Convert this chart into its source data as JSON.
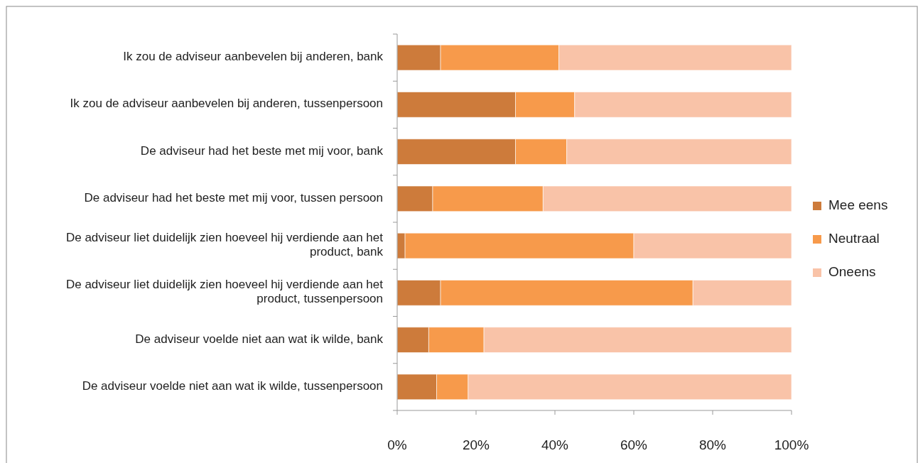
{
  "chart_data": {
    "type": "bar",
    "orientation": "horizontal",
    "stacked": true,
    "categories": [
      "Ik zou de adviseur aanbevelen bij anderen, bank",
      "Ik zou de adviseur aanbevelen bij anderen, tussenpersoon",
      "De adviseur had het beste met mij voor, bank",
      "De adviseur had het beste met mij voor, tussen persoon",
      "De adviseur liet duidelijk zien hoeveel hij verdiende aan het product, bank",
      "De adviseur liet duidelijk zien hoeveel hij verdiende aan het product, tussenpersoon",
      "De adviseur voelde niet aan wat ik wilde, bank",
      "De adviseur voelde niet aan wat ik wilde, tussenpersoon"
    ],
    "series": [
      {
        "name": "Mee eens",
        "color": "#cd7b3b",
        "values": [
          11,
          30,
          30,
          9,
          2,
          11,
          8,
          10
        ]
      },
      {
        "name": "Neutraal",
        "color": "#f79a4b",
        "values": [
          30,
          15,
          13,
          28,
          58,
          64,
          14,
          8
        ]
      },
      {
        "name": "Oneens",
        "color": "#f9c3a8",
        "values": [
          59,
          55,
          57,
          63,
          40,
          25,
          78,
          82
        ]
      }
    ],
    "xlim": [
      0,
      100
    ],
    "xticks": [
      {
        "value": 0,
        "label": "0%"
      },
      {
        "value": 20,
        "label": "20%"
      },
      {
        "value": 40,
        "label": "40%"
      },
      {
        "value": 60,
        "label": "60%"
      },
      {
        "value": 80,
        "label": "80%"
      },
      {
        "value": 100,
        "label": "100%"
      }
    ],
    "grid": false,
    "legend": "right"
  }
}
